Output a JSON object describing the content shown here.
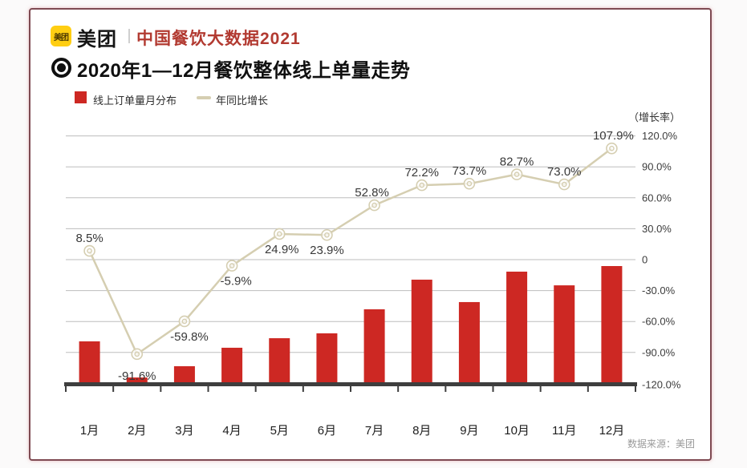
{
  "header": {
    "logo_text": "美团",
    "brand": "美团",
    "subtitle": "中国餐饮大数据2021"
  },
  "title": "2020年1—12月餐饮整体线上单量走势",
  "legend": {
    "bar_label": "线上订单量月分布",
    "line_label": "年同比增长"
  },
  "source": "数据来源：美团",
  "colors": {
    "bar_red": "#cd2823",
    "line_tan": "#d5ceb1",
    "subtitle_red": "#b23a31",
    "grid_gray": "#bdbdbd",
    "axis_dark": "#3e3e3e",
    "logo_yellow": "#ffce12",
    "card_border": "#7e4a52"
  },
  "chart_data": {
    "type": "bar",
    "subtype": "bar+line combo",
    "title": "2020年1—12月餐饮整体线上单量走势",
    "categories": [
      "1月",
      "2月",
      "3月",
      "4月",
      "5月",
      "6月",
      "7月",
      "8月",
      "9月",
      "10月",
      "11月",
      "12月"
    ],
    "series": [
      {
        "name": "线上订单量月分布",
        "type": "bar",
        "color": "#cd2823",
        "note": "no visible value axis for bars; heights relative to December = 1.0",
        "relative_heights": [
          0.352,
          0.041,
          0.138,
          0.297,
          0.379,
          0.421,
          0.628,
          0.883,
          0.69,
          0.952,
          0.834,
          1.0
        ]
      },
      {
        "name": "年同比增长",
        "type": "line",
        "color": "#d5ceb1",
        "values": [
          8.5,
          -91.6,
          -59.8,
          -5.9,
          24.9,
          23.9,
          52.8,
          72.2,
          73.7,
          82.7,
          73.0,
          107.9
        ],
        "labels": [
          "8.5%",
          "-91.6%",
          "-59.8%",
          "-5.9%",
          "24.9%",
          "23.9%",
          "52.8%",
          "72.2%",
          "73.7%",
          "82.7%",
          "73.0%",
          "107.9%"
        ],
        "label_positions": [
          "above",
          "below",
          "below",
          "below",
          "below",
          "below",
          "above",
          "above",
          "above",
          "above",
          "above",
          "above"
        ]
      }
    ],
    "right_axis": {
      "title": "（增长率）",
      "ticks": [
        "120.0%",
        "90.0%",
        "60.0%",
        "30.0%",
        "0",
        "-30.0%",
        "-60.0%",
        "-90.0%",
        "-120.0%"
      ],
      "tick_values": [
        120,
        90,
        60,
        30,
        0,
        -30,
        -60,
        -90,
        -120
      ],
      "min": -120,
      "max": 120
    },
    "grid": true,
    "legend_position": "top-left"
  }
}
